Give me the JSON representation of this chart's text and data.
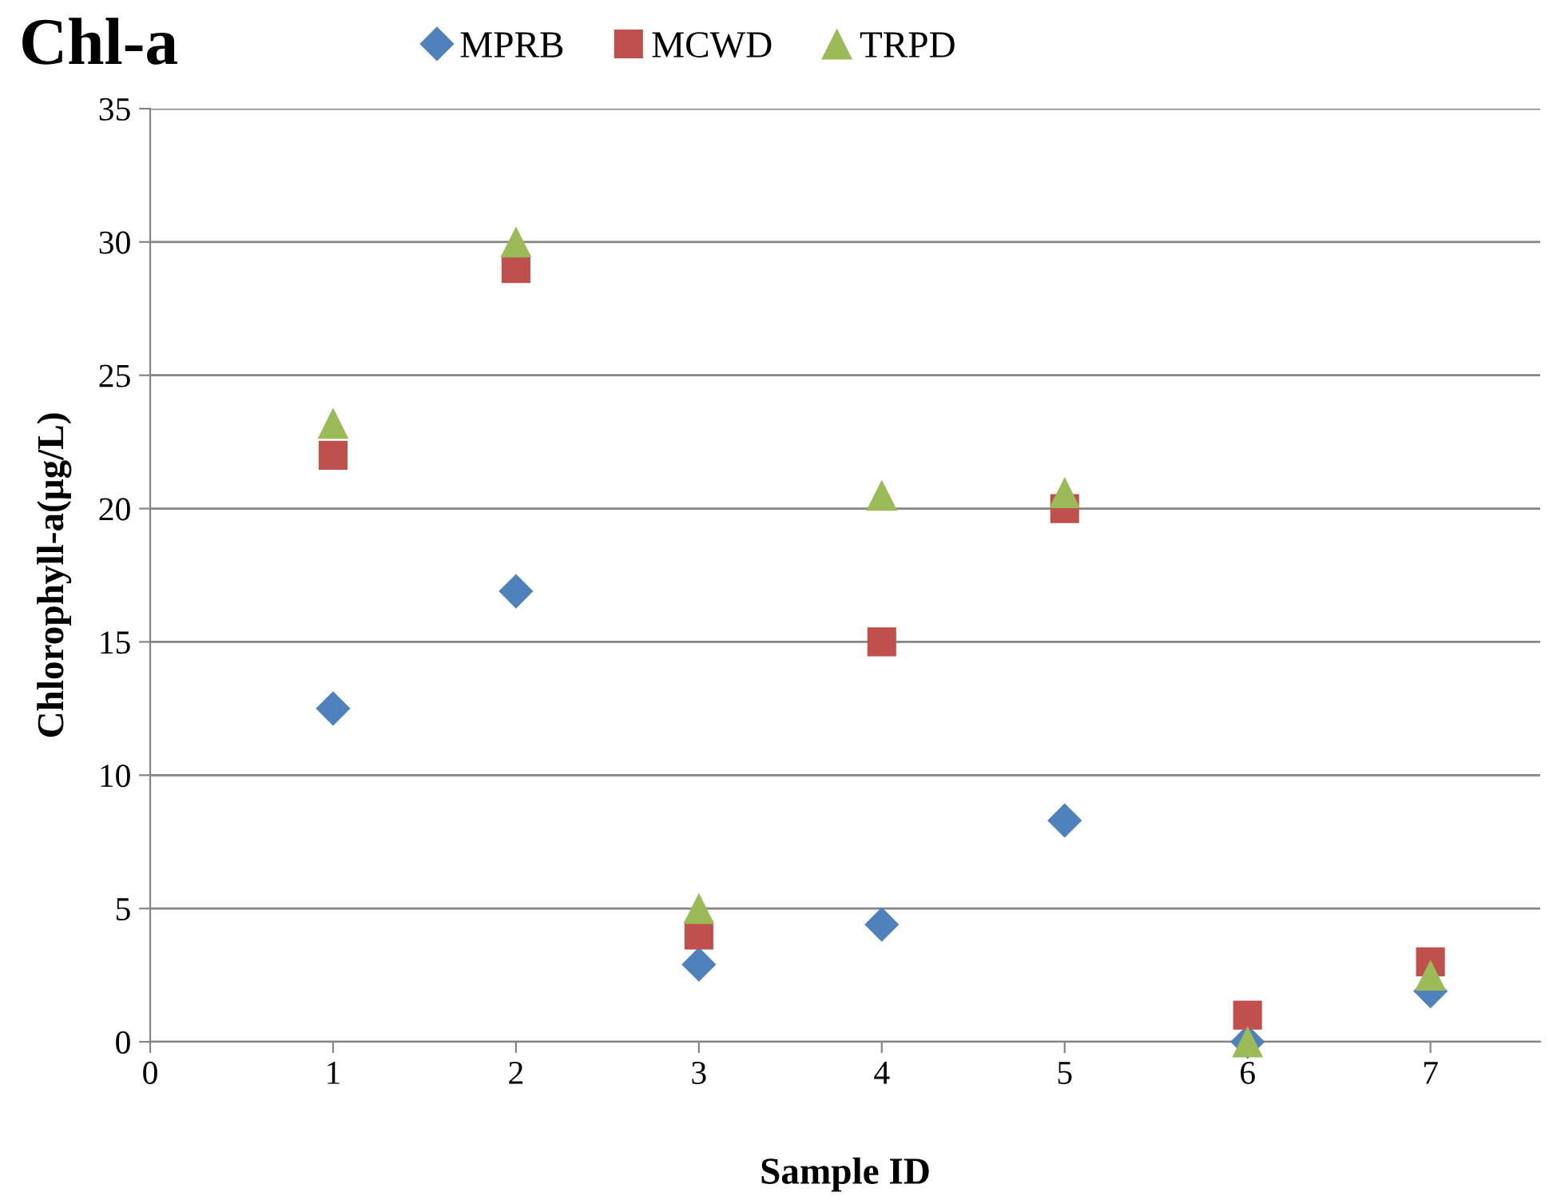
{
  "chart_data": {
    "type": "scatter",
    "title": "Chl-a",
    "xlabel": "Sample ID",
    "ylabel": "Chlorophyll-a(μg/L)",
    "x": [
      1,
      2,
      3,
      4,
      5,
      6,
      7
    ],
    "series": [
      {
        "name": "MPRB",
        "color": "#4f81bd",
        "marker": "diamond",
        "values": [
          12.5,
          16.9,
          2.9,
          4.4,
          8.3,
          0,
          1.9
        ]
      },
      {
        "name": "MCWD",
        "color": "#c0504d",
        "marker": "square",
        "values": [
          22,
          29,
          4,
          15,
          20,
          1,
          3
        ]
      },
      {
        "name": "TRPD",
        "color": "#9bbb59",
        "marker": "triangle",
        "values": [
          23.2,
          30,
          5,
          20.5,
          20.6,
          0,
          2.5
        ]
      }
    ],
    "xlim": [
      0,
      7.6
    ],
    "xticks": [
      0,
      1,
      2,
      3,
      4,
      5,
      6,
      7
    ],
    "ylim": [
      0,
      35
    ],
    "yticks": [
      0,
      5,
      10,
      15,
      20,
      25,
      30,
      35
    ],
    "grid": "y",
    "legend": "top"
  }
}
